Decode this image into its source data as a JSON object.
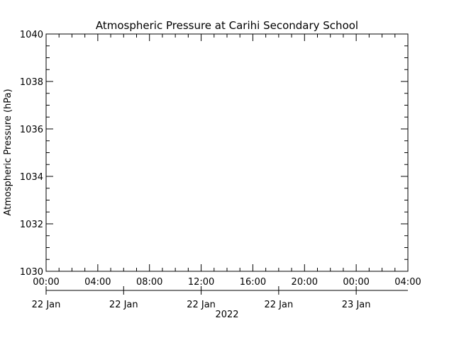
{
  "chart_data": {
    "type": "line",
    "title": "Atmospheric Pressure at Carihi Secondary School",
    "ylabel": "Atmospheric Pressure (hPa)",
    "series": [],
    "xlim": [
      0,
      28
    ],
    "xticks": [
      {
        "value": 0,
        "label": "00:00"
      },
      {
        "value": 4,
        "label": "04:00"
      },
      {
        "value": 8,
        "label": "08:00"
      },
      {
        "value": 12,
        "label": "12:00"
      },
      {
        "value": 16,
        "label": "16:00"
      },
      {
        "value": 20,
        "label": "20:00"
      },
      {
        "value": 24,
        "label": "00:00"
      },
      {
        "value": 28,
        "label": "04:00"
      }
    ],
    "x2ticks": [
      {
        "value": 0,
        "label": "22 Jan"
      },
      {
        "value": 6,
        "label": "22 Jan"
      },
      {
        "value": 12,
        "label": "22 Jan"
      },
      {
        "value": 18,
        "label": "22 Jan"
      },
      {
        "value": 24,
        "label": "23 Jan"
      }
    ],
    "x2label": "2022",
    "ylim": [
      1030,
      1040
    ],
    "yticks": [
      1030,
      1032,
      1034,
      1036,
      1038,
      1040
    ],
    "xminor": 4,
    "yminor": 4
  }
}
